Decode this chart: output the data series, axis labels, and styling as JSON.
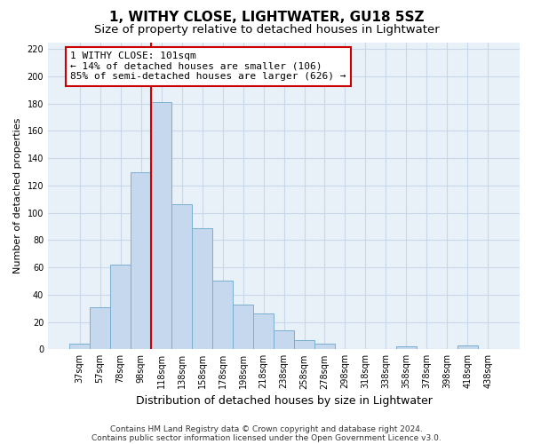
{
  "title": "1, WITHY CLOSE, LIGHTWATER, GU18 5SZ",
  "subtitle": "Size of property relative to detached houses in Lightwater",
  "xlabel": "Distribution of detached houses by size in Lightwater",
  "ylabel": "Number of detached properties",
  "bar_labels": [
    "37sqm",
    "57sqm",
    "78sqm",
    "98sqm",
    "118sqm",
    "138sqm",
    "158sqm",
    "178sqm",
    "198sqm",
    "218sqm",
    "238sqm",
    "258sqm",
    "278sqm",
    "298sqm",
    "318sqm",
    "338sqm",
    "358sqm",
    "378sqm",
    "398sqm",
    "418sqm",
    "438sqm"
  ],
  "bar_heights": [
    4,
    31,
    62,
    130,
    181,
    106,
    89,
    50,
    33,
    26,
    14,
    7,
    4,
    0,
    0,
    0,
    2,
    0,
    0,
    3,
    0
  ],
  "bar_color": "#c5d8ed",
  "bar_edge_color": "#7aaed0",
  "vline_x": 3.5,
  "vline_color": "#cc0000",
  "annotation_line1": "1 WITHY CLOSE: 101sqm",
  "annotation_line2": "← 14% of detached houses are smaller (106)",
  "annotation_line3": "85% of semi-detached houses are larger (626) →",
  "annotation_box_color": "#ffffff",
  "annotation_box_edge_color": "#cc0000",
  "ylim": [
    0,
    225
  ],
  "yticks": [
    0,
    20,
    40,
    60,
    80,
    100,
    120,
    140,
    160,
    180,
    200,
    220
  ],
  "grid_color": "#c8d8e8",
  "bg_color": "#e8f0f8",
  "footer_line1": "Contains HM Land Registry data © Crown copyright and database right 2024.",
  "footer_line2": "Contains public sector information licensed under the Open Government Licence v3.0.",
  "title_fontsize": 11,
  "subtitle_fontsize": 9.5,
  "xlabel_fontsize": 9,
  "ylabel_fontsize": 8,
  "annotation_fontsize": 8,
  "footer_fontsize": 6.5,
  "tick_fontsize": 7
}
